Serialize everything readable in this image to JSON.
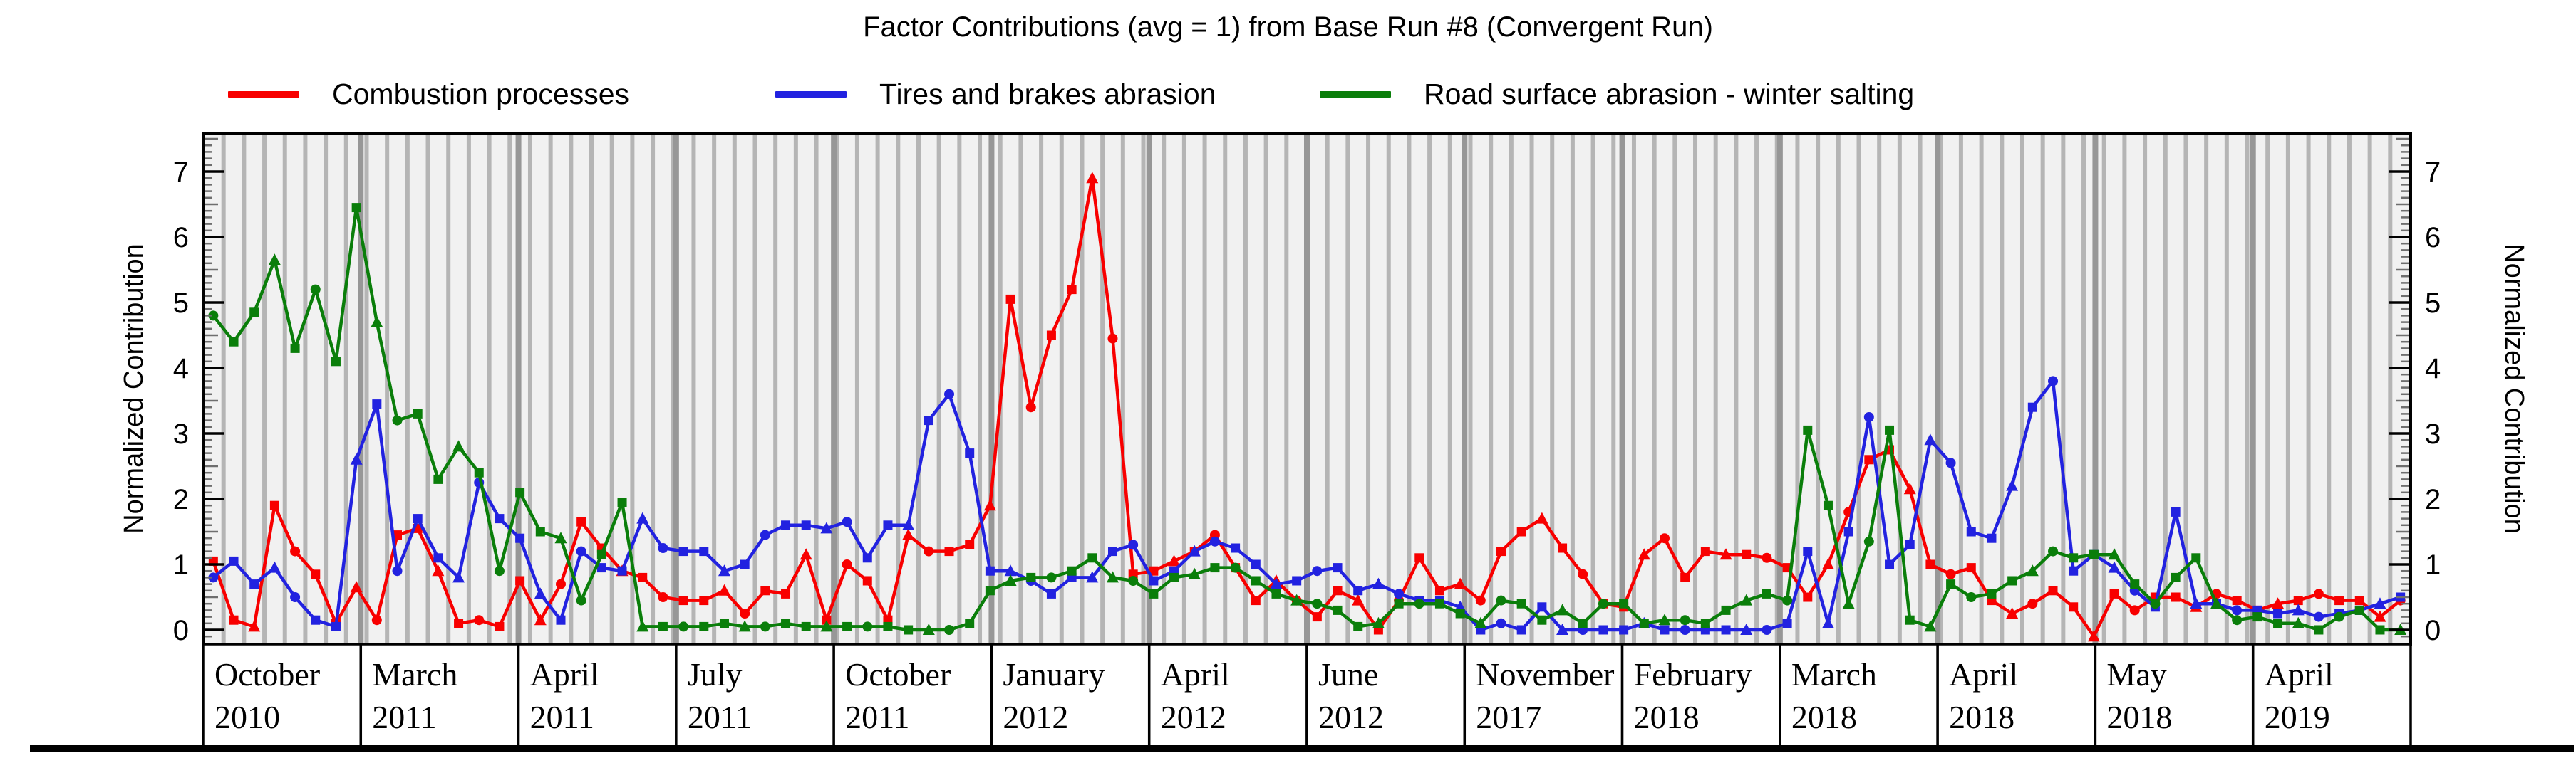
{
  "title": "Factor Contributions (avg = 1) from Base Run #8 (Convergent Run)",
  "y_axis": {
    "label": "Normalized Contribution",
    "ticks": [
      0,
      1,
      2,
      3,
      4,
      5,
      6,
      7
    ],
    "min": 0,
    "max": 7
  },
  "chart_data": {
    "type": "line",
    "title": "Factor Contributions (avg = 1) from Base Run #8 (Convergent Run)",
    "ylabel": "Normalized Contribution",
    "ylim": [
      0,
      7
    ],
    "grid": "vertical-sample-stripes",
    "legend_position": "top",
    "n_samples": 108,
    "x_labels": [
      {
        "month": "October",
        "year": "2010"
      },
      {
        "month": "March",
        "year": "2011"
      },
      {
        "month": "April",
        "year": "2011"
      },
      {
        "month": "July",
        "year": "2011"
      },
      {
        "month": "October",
        "year": "2011"
      },
      {
        "month": "January",
        "year": "2012"
      },
      {
        "month": "April",
        "year": "2012"
      },
      {
        "month": "June",
        "year": "2012"
      },
      {
        "month": "November",
        "year": "2017"
      },
      {
        "month": "February",
        "year": "2018"
      },
      {
        "month": "March",
        "year": "2018"
      },
      {
        "month": "April",
        "year": "2018"
      },
      {
        "month": "May",
        "year": "2018"
      },
      {
        "month": "April",
        "year": "2019"
      }
    ],
    "series": [
      {
        "name": "Combustion processes",
        "color": "#f80000",
        "values": [
          1.05,
          0.15,
          0.05,
          1.9,
          1.2,
          0.85,
          0.1,
          0.65,
          0.15,
          1.45,
          1.55,
          0.9,
          0.1,
          0.15,
          0.05,
          0.75,
          0.15,
          0.7,
          1.65,
          1.25,
          0.9,
          0.8,
          0.5,
          0.45,
          0.45,
          0.6,
          0.25,
          0.6,
          0.55,
          1.15,
          0.15,
          1.0,
          0.75,
          0.15,
          1.45,
          1.2,
          1.2,
          1.3,
          1.9,
          5.05,
          3.4,
          4.5,
          5.2,
          6.9,
          4.45,
          0.85,
          0.9,
          1.05,
          1.2,
          1.45,
          0.95,
          0.45,
          0.75,
          0.45,
          0.2,
          0.6,
          0.45,
          0.0,
          0.45,
          1.1,
          0.6,
          0.7,
          0.45,
          1.2,
          1.5,
          1.7,
          1.25,
          0.85,
          0.4,
          0.35,
          1.15,
          1.4,
          0.8,
          1.2,
          1.15,
          1.15,
          1.1,
          0.95,
          0.5,
          1.0,
          1.8,
          2.6,
          2.75,
          2.15,
          1.0,
          0.85,
          0.95,
          0.45,
          0.25,
          0.4,
          0.6,
          0.35,
          -0.1,
          0.55,
          0.3,
          0.5,
          0.5,
          0.35,
          0.55,
          0.45,
          0.3,
          0.4,
          0.45,
          0.55,
          0.45,
          0.45,
          0.2,
          0.45
        ]
      },
      {
        "name": "Tires and brakes abrasion",
        "color": "#2222e0",
        "values": [
          0.8,
          1.05,
          0.7,
          0.95,
          0.5,
          0.15,
          0.05,
          2.6,
          3.45,
          0.9,
          1.7,
          1.1,
          0.8,
          2.25,
          1.7,
          1.4,
          0.55,
          0.15,
          1.2,
          0.95,
          0.9,
          1.7,
          1.25,
          1.2,
          1.2,
          0.9,
          1.0,
          1.45,
          1.6,
          1.6,
          1.55,
          1.65,
          1.1,
          1.6,
          1.6,
          3.2,
          3.6,
          2.7,
          0.9,
          0.9,
          0.75,
          0.55,
          0.8,
          0.8,
          1.2,
          1.3,
          0.75,
          0.9,
          1.2,
          1.35,
          1.25,
          1.0,
          0.7,
          0.75,
          0.9,
          0.95,
          0.6,
          0.7,
          0.55,
          0.45,
          0.45,
          0.35,
          0.0,
          0.1,
          0.0,
          0.35,
          0.0,
          0.0,
          0.0,
          0.0,
          0.1,
          0.0,
          0.0,
          0.0,
          0.0,
          0.0,
          0.0,
          0.1,
          1.2,
          0.1,
          1.5,
          3.25,
          1.0,
          1.3,
          2.9,
          2.55,
          1.5,
          1.4,
          2.2,
          3.4,
          3.8,
          0.9,
          1.15,
          0.95,
          0.6,
          0.35,
          1.8,
          0.4,
          0.4,
          0.3,
          0.3,
          0.25,
          0.3,
          0.2,
          0.25,
          0.3,
          0.4,
          0.5
        ]
      },
      {
        "name": "Road surface abrasion - winter salting",
        "color": "#0a7e0a",
        "values": [
          4.8,
          4.4,
          4.85,
          5.65,
          4.3,
          5.2,
          4.1,
          6.45,
          4.7,
          3.2,
          3.3,
          2.3,
          2.8,
          2.4,
          0.9,
          2.1,
          1.5,
          1.4,
          0.45,
          1.15,
          1.95,
          0.05,
          0.05,
          0.05,
          0.05,
          0.1,
          0.05,
          0.05,
          0.1,
          0.05,
          0.05,
          0.05,
          0.05,
          0.05,
          0.0,
          0.0,
          0.0,
          0.1,
          0.6,
          0.75,
          0.8,
          0.8,
          0.9,
          1.1,
          0.8,
          0.75,
          0.55,
          0.8,
          0.85,
          0.95,
          0.95,
          0.75,
          0.55,
          0.45,
          0.4,
          0.3,
          0.05,
          0.1,
          0.4,
          0.4,
          0.4,
          0.25,
          0.1,
          0.45,
          0.4,
          0.15,
          0.3,
          0.1,
          0.4,
          0.4,
          0.1,
          0.15,
          0.15,
          0.1,
          0.3,
          0.45,
          0.55,
          0.45,
          3.05,
          1.9,
          0.4,
          1.35,
          3.05,
          0.15,
          0.05,
          0.7,
          0.5,
          0.55,
          0.75,
          0.9,
          1.2,
          1.1,
          1.15,
          1.15,
          0.7,
          0.4,
          0.8,
          1.1,
          0.4,
          0.15,
          0.2,
          0.1,
          0.1,
          0.0,
          0.2,
          0.3,
          0.0,
          0.0
        ]
      }
    ],
    "colors": {
      "plot_background": "#f1f1f1",
      "sample_stripe": "#b5b5b5",
      "group_boundary_stripe": "#979797",
      "frame": "#000000"
    }
  }
}
